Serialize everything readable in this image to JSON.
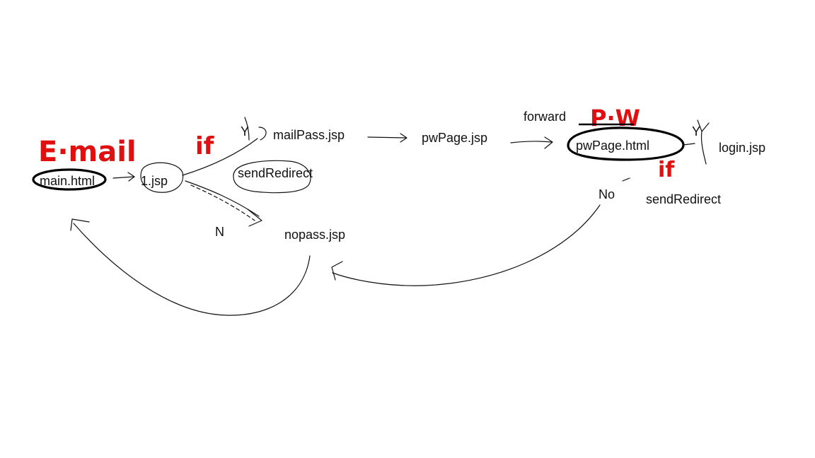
{
  "nodes": {
    "main": "main.html",
    "one": "1.jsp",
    "mailpass": "mailPass.jsp",
    "pwpage": "pwPage.jsp",
    "pwpage_html": "pwPage.html",
    "login": "login.jsp",
    "nopass": "nopass.jsp"
  },
  "labels": {
    "send_redirect_1": "sendRedirect",
    "send_redirect_2": "sendRedirect",
    "forward": "forward"
  },
  "annotations": {
    "email": "E·mail",
    "if_1": "if",
    "if_2": "if",
    "pw": "P·W",
    "y_1": "Y",
    "n_1": "N",
    "no": "No",
    "y_2": "Y"
  },
  "colors": {
    "ink": "#111111",
    "annotation": "#e01010"
  }
}
